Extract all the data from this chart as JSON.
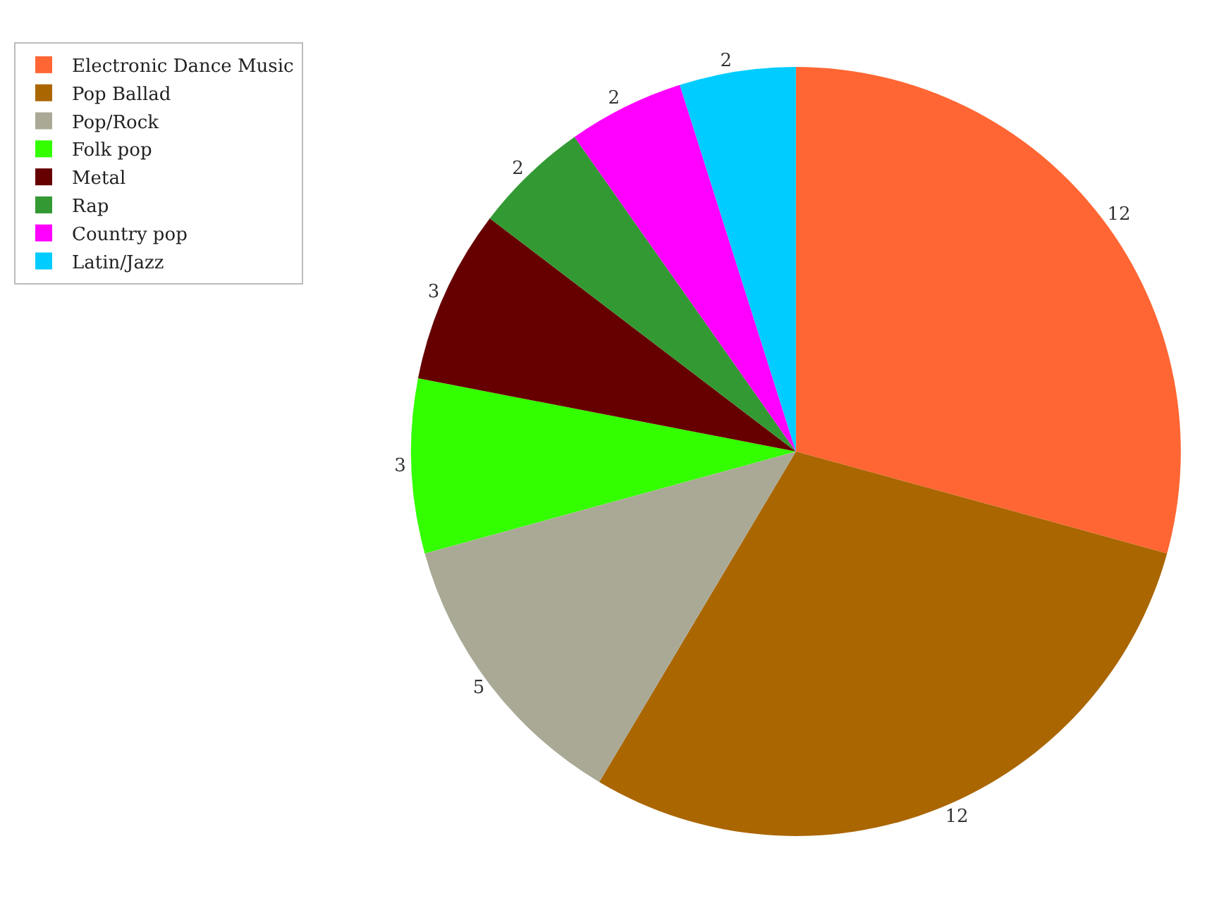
{
  "chart_data": {
    "type": "pie",
    "categories": [
      "Electronic Dance Music",
      "Pop Ballad",
      "Pop/Rock",
      "Folk pop",
      "Metal",
      "Rap",
      "Country pop",
      "Latin/Jazz"
    ],
    "values": [
      12,
      12,
      5,
      3,
      3,
      2,
      2,
      2
    ],
    "colors": [
      "#ff6633",
      "#aa6600",
      "#aaa996",
      "#33ff00",
      "#660000",
      "#339933",
      "#ff00ff",
      "#00ccff"
    ],
    "data_labels": true,
    "legend": "top left"
  }
}
